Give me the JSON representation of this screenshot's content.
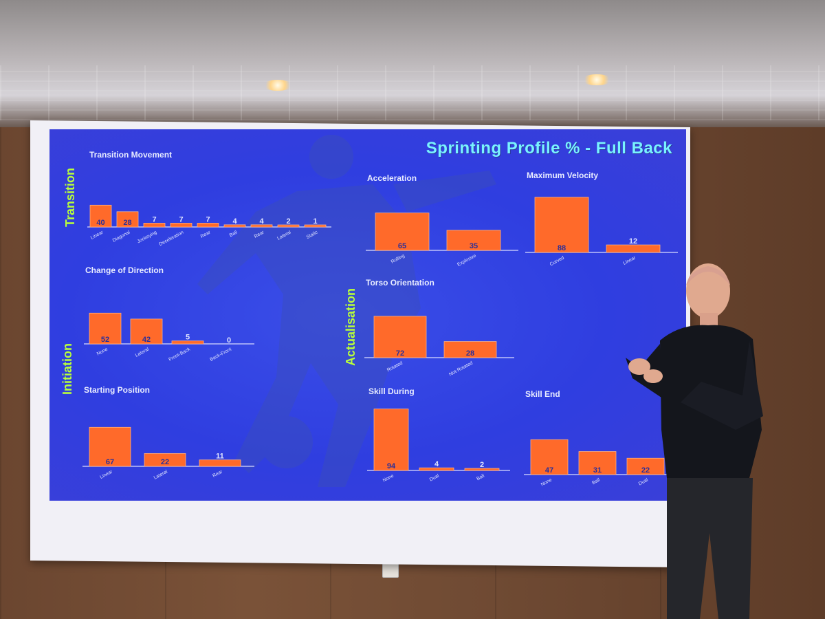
{
  "slide": {
    "title": "Sprinting Profile % - Full Back",
    "side_labels": [
      "Transition",
      "Initiation",
      "Actualisation"
    ]
  },
  "colors": {
    "bar": "#ff6a2a",
    "slide_background": "#3546e0",
    "title": "#79f2ff",
    "side_label": "#b8ff3a"
  },
  "chart_data": [
    {
      "type": "bar",
      "title": "Transition Movement",
      "categories": [
        "Linear",
        "Diagonal",
        "Jockeying",
        "Deceleration",
        "Rear",
        "Ball",
        "Rear",
        "Lateral",
        "Static"
      ],
      "values": [
        40,
        28,
        7,
        7,
        7,
        4,
        4,
        2,
        1
      ],
      "ylim": [
        0,
        100
      ]
    },
    {
      "type": "bar",
      "title": "Acceleration",
      "categories": [
        "Rolling",
        "Explosive"
      ],
      "values": [
        65,
        35
      ],
      "ylim": [
        0,
        100
      ]
    },
    {
      "type": "bar",
      "title": "Maximum Velocity",
      "categories": [
        "Curved",
        "Linear"
      ],
      "values": [
        88,
        12
      ],
      "ylim": [
        0,
        100
      ]
    },
    {
      "type": "bar",
      "title": "Change of Direction",
      "categories": [
        "None",
        "Lateral",
        "Front-Back",
        "Back-Front"
      ],
      "values": [
        52,
        42,
        5,
        0
      ],
      "ylim": [
        0,
        100
      ]
    },
    {
      "type": "bar",
      "title": "Torso Orientation",
      "categories": [
        "Rotated",
        "Not-Rotated"
      ],
      "values": [
        72,
        28
      ],
      "ylim": [
        0,
        100
      ]
    },
    {
      "type": "bar",
      "title": "Starting Position",
      "categories": [
        "Linear",
        "Lateral",
        "Rear"
      ],
      "values": [
        67,
        22,
        11
      ],
      "ylim": [
        0,
        100
      ]
    },
    {
      "type": "bar",
      "title": "Skill During",
      "categories": [
        "None",
        "Dual",
        "Ball"
      ],
      "values": [
        94,
        4,
        2
      ],
      "ylim": [
        0,
        100
      ]
    },
    {
      "type": "bar",
      "title": "Skill End",
      "categories": [
        "None",
        "Ball",
        "Dual"
      ],
      "values": [
        47,
        31,
        22
      ],
      "ylim": [
        0,
        100
      ]
    }
  ]
}
